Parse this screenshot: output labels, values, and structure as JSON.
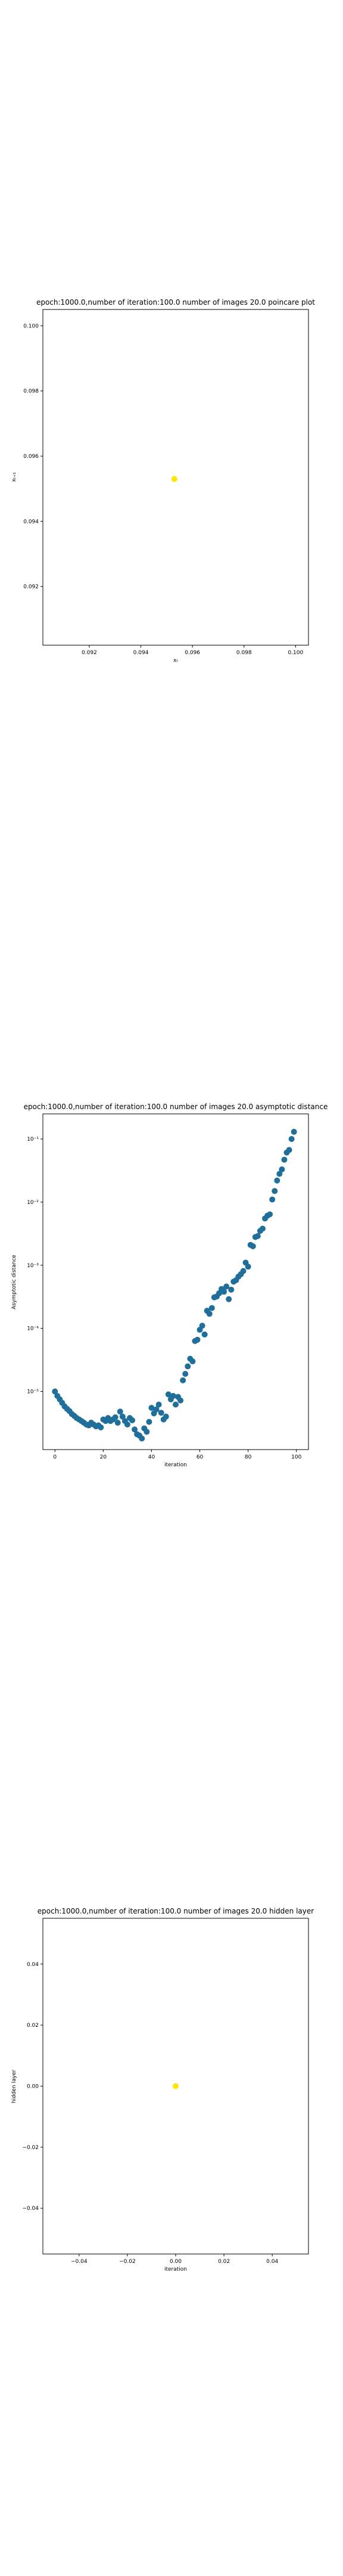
{
  "chart_data": [
    {
      "type": "scatter",
      "title": "epoch:1000.0,number of iteration:100.0 number of images 20.0 poincare plot",
      "xlabel": "xₜ",
      "ylabel": "xₜ₊₁",
      "xlim": [
        0.0902,
        0.1005
      ],
      "ylim": [
        0.0902,
        0.1005
      ],
      "xticks": [
        0.092,
        0.094,
        0.096,
        0.098,
        0.1
      ],
      "xtick_labels": [
        "0.092",
        "0.094",
        "0.096",
        "0.098",
        "0.100"
      ],
      "yticks": [
        0.092,
        0.094,
        0.096,
        0.098,
        0.1
      ],
      "ytick_labels": [
        "0.092",
        "0.094",
        "0.096",
        "0.098",
        "0.100"
      ],
      "grid": false,
      "legend": "none",
      "colors": {
        "point": "#ffe600"
      },
      "points": [
        {
          "x": 0.0953,
          "y": 0.0953
        }
      ]
    },
    {
      "type": "scatter",
      "title": "epoch:1000.0,number of iteration:100.0  number of images 20.0 asymptotic distance",
      "xlabel": "iteration",
      "ylabel": "Asymptotic distance",
      "yscale": "log",
      "xlim": [
        -5,
        105
      ],
      "ylim": [
        1.2e-06,
        0.25
      ],
      "xticks": [
        0,
        20,
        40,
        60,
        80,
        100
      ],
      "xtick_labels": [
        "0",
        "20",
        "40",
        "60",
        "80",
        "100"
      ],
      "yticks": [
        1e-05,
        0.0001,
        0.001,
        0.01,
        0.1
      ],
      "ytick_labels": [
        "10⁻⁵",
        "10⁻⁴",
        "10⁻³",
        "10⁻²",
        "10⁻¹"
      ],
      "grid": false,
      "legend": "none",
      "colors": {
        "point": "#1f6f9a"
      },
      "x": [
        0,
        1,
        2,
        3,
        4,
        5,
        6,
        7,
        8,
        9,
        10,
        11,
        12,
        13,
        14,
        15,
        16,
        17,
        18,
        19,
        20,
        21,
        22,
        23,
        24,
        25,
        26,
        27,
        28,
        29,
        30,
        31,
        32,
        33,
        34,
        35,
        36,
        37,
        38,
        39,
        40,
        41,
        42,
        43,
        44,
        45,
        46,
        47,
        48,
        49,
        50,
        51,
        52,
        53,
        54,
        55,
        56,
        57,
        58,
        59,
        60,
        61,
        62,
        63,
        64,
        65,
        66,
        67,
        68,
        69,
        70,
        71,
        72,
        73,
        74,
        75,
        76,
        77,
        78,
        79,
        80,
        81,
        82,
        83,
        84,
        85,
        86,
        87,
        88,
        89,
        90,
        91,
        92,
        93,
        94,
        95,
        96,
        97,
        98,
        99
      ],
      "y": [
        1e-05,
        8.5e-06,
        7.5e-06,
        6.6e-06,
        5.8e-06,
        5.3e-06,
        4.9e-06,
        4.4e-06,
        4.1e-06,
        3.8e-06,
        3.6e-06,
        3.4e-06,
        3.2e-06,
        3e-06,
        2.9e-06,
        3.2e-06,
        3e-06,
        2.8e-06,
        2.9e-06,
        2.7e-06,
        3.6e-06,
        3.4e-06,
        3.8e-06,
        3.4e-06,
        3.6e-06,
        3.9e-06,
        3.2e-06,
        4.8e-06,
        4e-06,
        3.4e-06,
        3e-06,
        3.8e-06,
        3.5e-06,
        2.5e-06,
        2.1e-06,
        2e-06,
        1.8e-06,
        2.6e-06,
        2.3e-06,
        3.3e-06,
        5.5e-06,
        4.5e-06,
        5.2e-06,
        6.2e-06,
        4.6e-06,
        3.6e-06,
        4e-06,
        9e-06,
        7.5e-06,
        8.5e-06,
        6.2e-06,
        8.2e-06,
        7.2e-06,
        1.5e-05,
        1.9e-05,
        2.5e-05,
        3.3e-05,
        3e-05,
        6.3e-05,
        6.6e-05,
        9.5e-05,
        0.00011,
        8e-05,
        0.00019,
        0.00017,
        0.00021,
        0.00031,
        0.00032,
        0.00036,
        0.00042,
        0.00038,
        0.00046,
        0.00029,
        0.00041,
        0.00055,
        0.00058,
        0.00066,
        0.00072,
        0.00081,
        0.0011,
        0.00095,
        0.0021,
        0.002,
        0.0028,
        0.0029,
        0.0035,
        0.0038,
        0.0055,
        0.0061,
        0.0064,
        0.011,
        0.015,
        0.022,
        0.028,
        0.033,
        0.047,
        0.061,
        0.067,
        0.1,
        0.13
      ]
    },
    {
      "type": "scatter",
      "title": "epoch:1000.0,number of iteration:100.0  number of images 20.0 hidden layer",
      "xlabel": "iteration",
      "ylabel": "hidden layer",
      "xlim": [
        -0.055,
        0.055
      ],
      "ylim": [
        -0.055,
        0.055
      ],
      "xticks": [
        -0.04,
        -0.02,
        0.0,
        0.02,
        0.04
      ],
      "xtick_labels": [
        "−0.04",
        "−0.02",
        "0.00",
        "0.02",
        "0.04"
      ],
      "yticks": [
        -0.04,
        -0.02,
        0.0,
        0.02,
        0.04
      ],
      "ytick_labels": [
        "−0.04",
        "−0.02",
        "0.00",
        "0.02",
        "0.04"
      ],
      "grid": false,
      "legend": "none",
      "colors": {
        "point": "#ffe600"
      },
      "points": [
        {
          "x": 0.0,
          "y": 0.0
        }
      ]
    }
  ]
}
